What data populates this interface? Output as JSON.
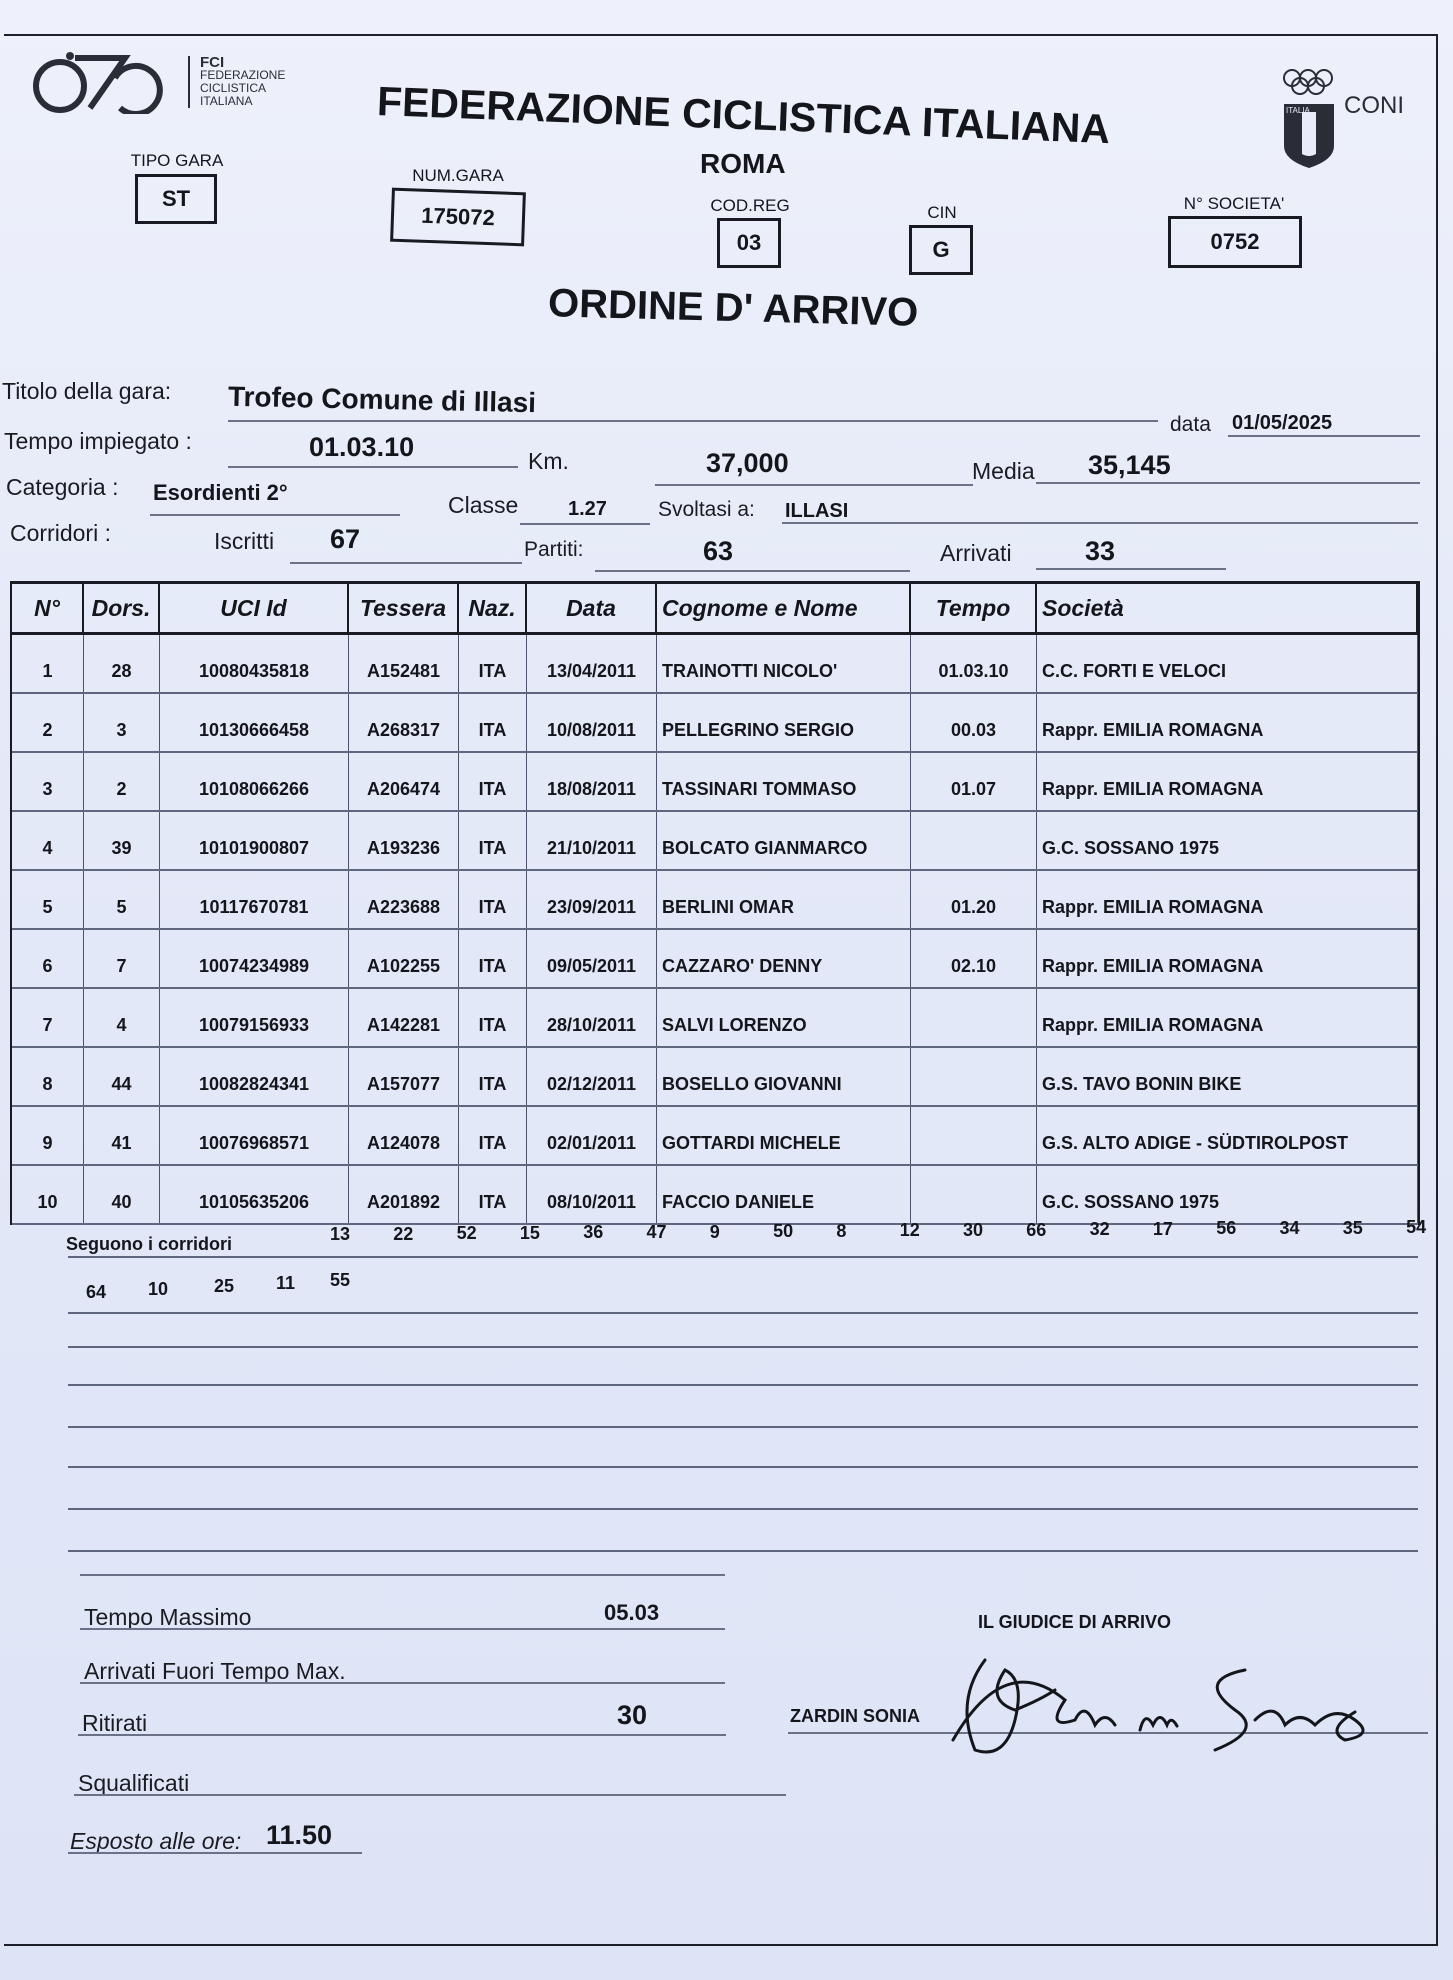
{
  "header": {
    "org_short": "FCI",
    "org_lines": [
      "FEDERAZIONE",
      "CICLISTICA",
      "ITALIANA"
    ],
    "title": "FEDERAZIONE CICLISTICA ITALIANA",
    "city": "ROMA",
    "coni_label": "CONI",
    "coni_shield_text": "ITALIA"
  },
  "codes": {
    "tipo_gara_label": "TIPO GARA",
    "tipo_gara": "ST",
    "num_gara_label": "NUM.GARA",
    "num_gara": "175072",
    "cod_reg_label": "COD.REG",
    "cod_reg": "03",
    "cin_label": "CIN",
    "cin": "G",
    "societa_label": "N° SOCIETA'",
    "societa": "0752"
  },
  "doc_title": "ORDINE D' ARRIVO",
  "race": {
    "title_label": "Titolo della gara:",
    "title": "Trofeo Comune di Illasi",
    "date_label": "data",
    "date": "01/05/2025",
    "time_label": "Tempo impiegato :",
    "time": "01.03.10",
    "km_label": "Km.",
    "km": "37,000",
    "media_label": "Media",
    "media": "35,145",
    "category_label": "Categoria :",
    "category": "Esordienti 2°",
    "classe_label": "Classe",
    "classe": "1.27",
    "place_label": "Svoltasi a:",
    "place": "ILLASI",
    "riders_label": "Corridori :",
    "iscritti_label": "Iscritti",
    "iscritti": "67",
    "partiti_label": "Partiti:",
    "partiti": "63",
    "arrivati_label": "Arrivati",
    "arrivati": "33"
  },
  "table": {
    "columns": [
      "N°",
      "Dors.",
      "UCI Id",
      "Tessera",
      "Naz.",
      "Data",
      "Cognome e Nome",
      "Tempo",
      "Società"
    ],
    "rows": [
      [
        "1",
        "28",
        "10080435818",
        "A152481",
        "ITA",
        "13/04/2011",
        "TRAINOTTI NICOLO'",
        "01.03.10",
        "C.C. FORTI E VELOCI"
      ],
      [
        "2",
        "3",
        "10130666458",
        "A268317",
        "ITA",
        "10/08/2011",
        "PELLEGRINO SERGIO",
        "00.03",
        "Rappr. EMILIA ROMAGNA"
      ],
      [
        "3",
        "2",
        "10108066266",
        "A206474",
        "ITA",
        "18/08/2011",
        "TASSINARI TOMMASO",
        "01.07",
        "Rappr. EMILIA ROMAGNA"
      ],
      [
        "4",
        "39",
        "10101900807",
        "A193236",
        "ITA",
        "21/10/2011",
        "BOLCATO GIANMARCO",
        "",
        "G.C. SOSSANO 1975"
      ],
      [
        "5",
        "5",
        "10117670781",
        "A223688",
        "ITA",
        "23/09/2011",
        "BERLINI OMAR",
        "01.20",
        "Rappr. EMILIA ROMAGNA"
      ],
      [
        "6",
        "7",
        "10074234989",
        "A102255",
        "ITA",
        "09/05/2011",
        "CAZZARO' DENNY",
        "02.10",
        "Rappr. EMILIA ROMAGNA"
      ],
      [
        "7",
        "4",
        "10079156933",
        "A142281",
        "ITA",
        "28/10/2011",
        "SALVI LORENZO",
        "",
        "Rappr. EMILIA ROMAGNA"
      ],
      [
        "8",
        "44",
        "10082824341",
        "A157077",
        "ITA",
        "02/12/2011",
        "BOSELLO GIOVANNI",
        "",
        "G.S. TAVO BONIN BIKE"
      ],
      [
        "9",
        "41",
        "10076968571",
        "A124078",
        "ITA",
        "02/01/2011",
        "GOTTARDI MICHELE",
        "",
        "G.S. ALTO ADIGE - SÜDTIROLPOST"
      ],
      [
        "10",
        "40",
        "10105635206",
        "A201892",
        "ITA",
        "08/10/2011",
        "FACCIO DANIELE",
        "",
        "G.C. SOSSANO 1975"
      ]
    ]
  },
  "followers": {
    "label": "Seguono i corridori",
    "line1": [
      "13",
      "22",
      "52",
      "15",
      "36",
      "47",
      "9",
      "50",
      "8",
      "12",
      "30",
      "66",
      "32",
      "17",
      "56",
      "34",
      "35",
      "54"
    ],
    "line2": [
      "64",
      "10",
      "25",
      "11",
      "55"
    ]
  },
  "footer": {
    "tempo_massimo_label": "Tempo Massimo",
    "tempo_massimo": "05.03",
    "fuori_tempo_label": "Arrivati Fuori Tempo Max.",
    "ritirati_label": "Ritirati",
    "ritirati": "30",
    "squalificati_label": "Squalificati",
    "esposto_label": "Esposto alle ore:",
    "esposto": "11.50",
    "judge_label": "IL GIUDICE DI ARRIVO",
    "judge_name": "ZARDIN SONIA"
  }
}
